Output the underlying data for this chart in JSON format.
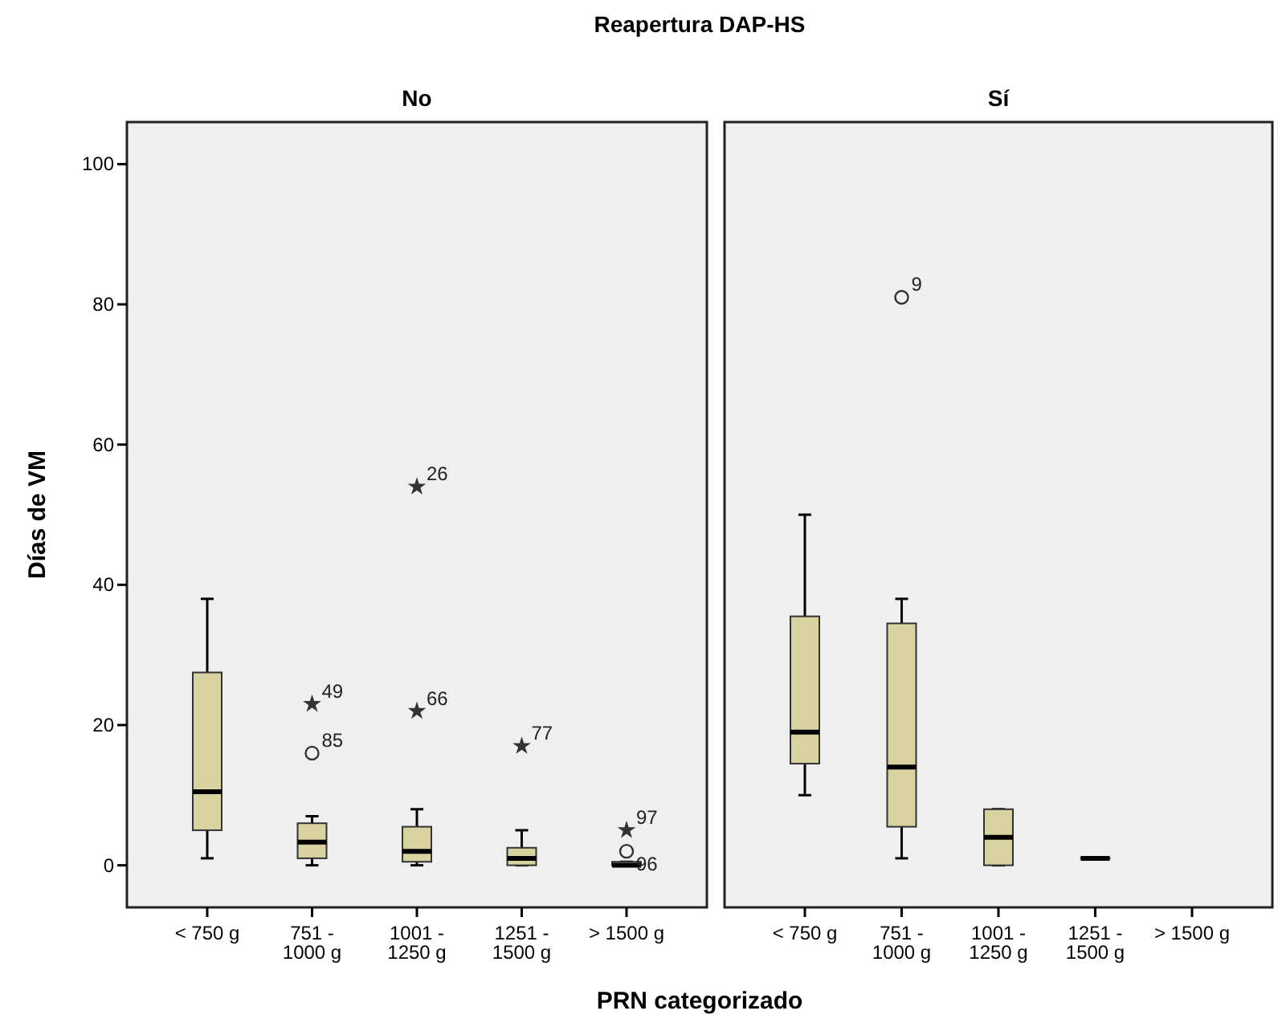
{
  "chart_data": [
    {
      "type": "box",
      "title": "Reapertura DAP-HS",
      "subtitle": "No",
      "xlabel": "PRN categorizado",
      "ylabel": "Días de VM",
      "categories": [
        "< 750 g",
        "751 - 1000 g",
        "1001 - 1250 g",
        "1251 - 1500 g",
        "> 1500 g"
      ],
      "ylim": [
        -6,
        106
      ],
      "yticks": [
        0,
        20,
        40,
        60,
        80,
        100
      ],
      "grid": false,
      "series": [
        {
          "color": "#d8d2a0",
          "boxes": [
            {
              "low": 1,
              "q1": 5,
              "median": 10.5,
              "q3": 27.5,
              "high": 38
            },
            {
              "low": 0,
              "q1": 1,
              "median": 3.3,
              "q3": 6,
              "high": 7
            },
            {
              "low": 0,
              "q1": 0.5,
              "median": 2,
              "q3": 5.5,
              "high": 8
            },
            {
              "low": 0,
              "q1": 0,
              "median": 1,
              "q3": 2.5,
              "high": 5
            },
            {
              "low": 0,
              "q1": 0,
              "median": 0,
              "q3": 0.5,
              "high": 0.5
            }
          ]
        },
        {
          "type": "scatter",
          "marker": "circle",
          "color": "#333333",
          "x": [
            "751 - 1000 g",
            "> 1500 g"
          ],
          "values": [
            16,
            2
          ]
        },
        {
          "type": "scatter",
          "marker": "star",
          "color": "#333333",
          "x": [
            "751 - 1000 g",
            "1001 - 1250 g",
            "1001 - 1250 g",
            "1251 - 1500 g",
            "> 1500 g"
          ],
          "values": [
            23,
            22,
            54,
            17,
            5
          ]
        }
      ],
      "annotations": [
        {
          "text": "49",
          "x": "751 - 1000 g",
          "y": 23
        },
        {
          "text": "85",
          "x": "751 - 1000 g",
          "y": 16
        },
        {
          "text": "26",
          "x": "1001 - 1250 g",
          "y": 54
        },
        {
          "text": "66",
          "x": "1001 - 1250 g",
          "y": 22
        },
        {
          "text": "77",
          "x": "1251 - 1500 g",
          "y": 17
        },
        {
          "text": "97",
          "x": "> 1500 g",
          "y": 5
        },
        {
          "text": "96",
          "x": "> 1500 g",
          "y": 2
        }
      ]
    },
    {
      "type": "box",
      "subtitle": "Sí",
      "categories": [
        "< 750 g",
        "751 - 1000 g",
        "1001 - 1250 g",
        "1251 - 1500 g",
        "> 1500 g"
      ],
      "ylim": [
        -6,
        106
      ],
      "tick_labels": "x",
      "grid": false,
      "series": [
        {
          "color": "#d8d2a0",
          "boxes": [
            {
              "low": 10,
              "q1": 14.5,
              "median": 19,
              "q3": 35.5,
              "high": 50
            },
            {
              "low": 1,
              "q1": 5.5,
              "median": 14,
              "q3": 34.5,
              "high": 38
            },
            {
              "low": 0,
              "q1": 0,
              "median": 4,
              "q3": 8,
              "high": 8
            },
            {
              "low": 1,
              "q1": 1,
              "median": 1,
              "q3": 1,
              "high": 1
            },
            null
          ]
        },
        {
          "type": "scatter",
          "marker": "circle",
          "color": "#333333",
          "x": [
            "751 - 1000 g"
          ],
          "values": [
            81
          ]
        }
      ],
      "annotations": [
        {
          "text": "9",
          "x": "751 - 1000 g",
          "y": 81
        }
      ]
    }
  ]
}
